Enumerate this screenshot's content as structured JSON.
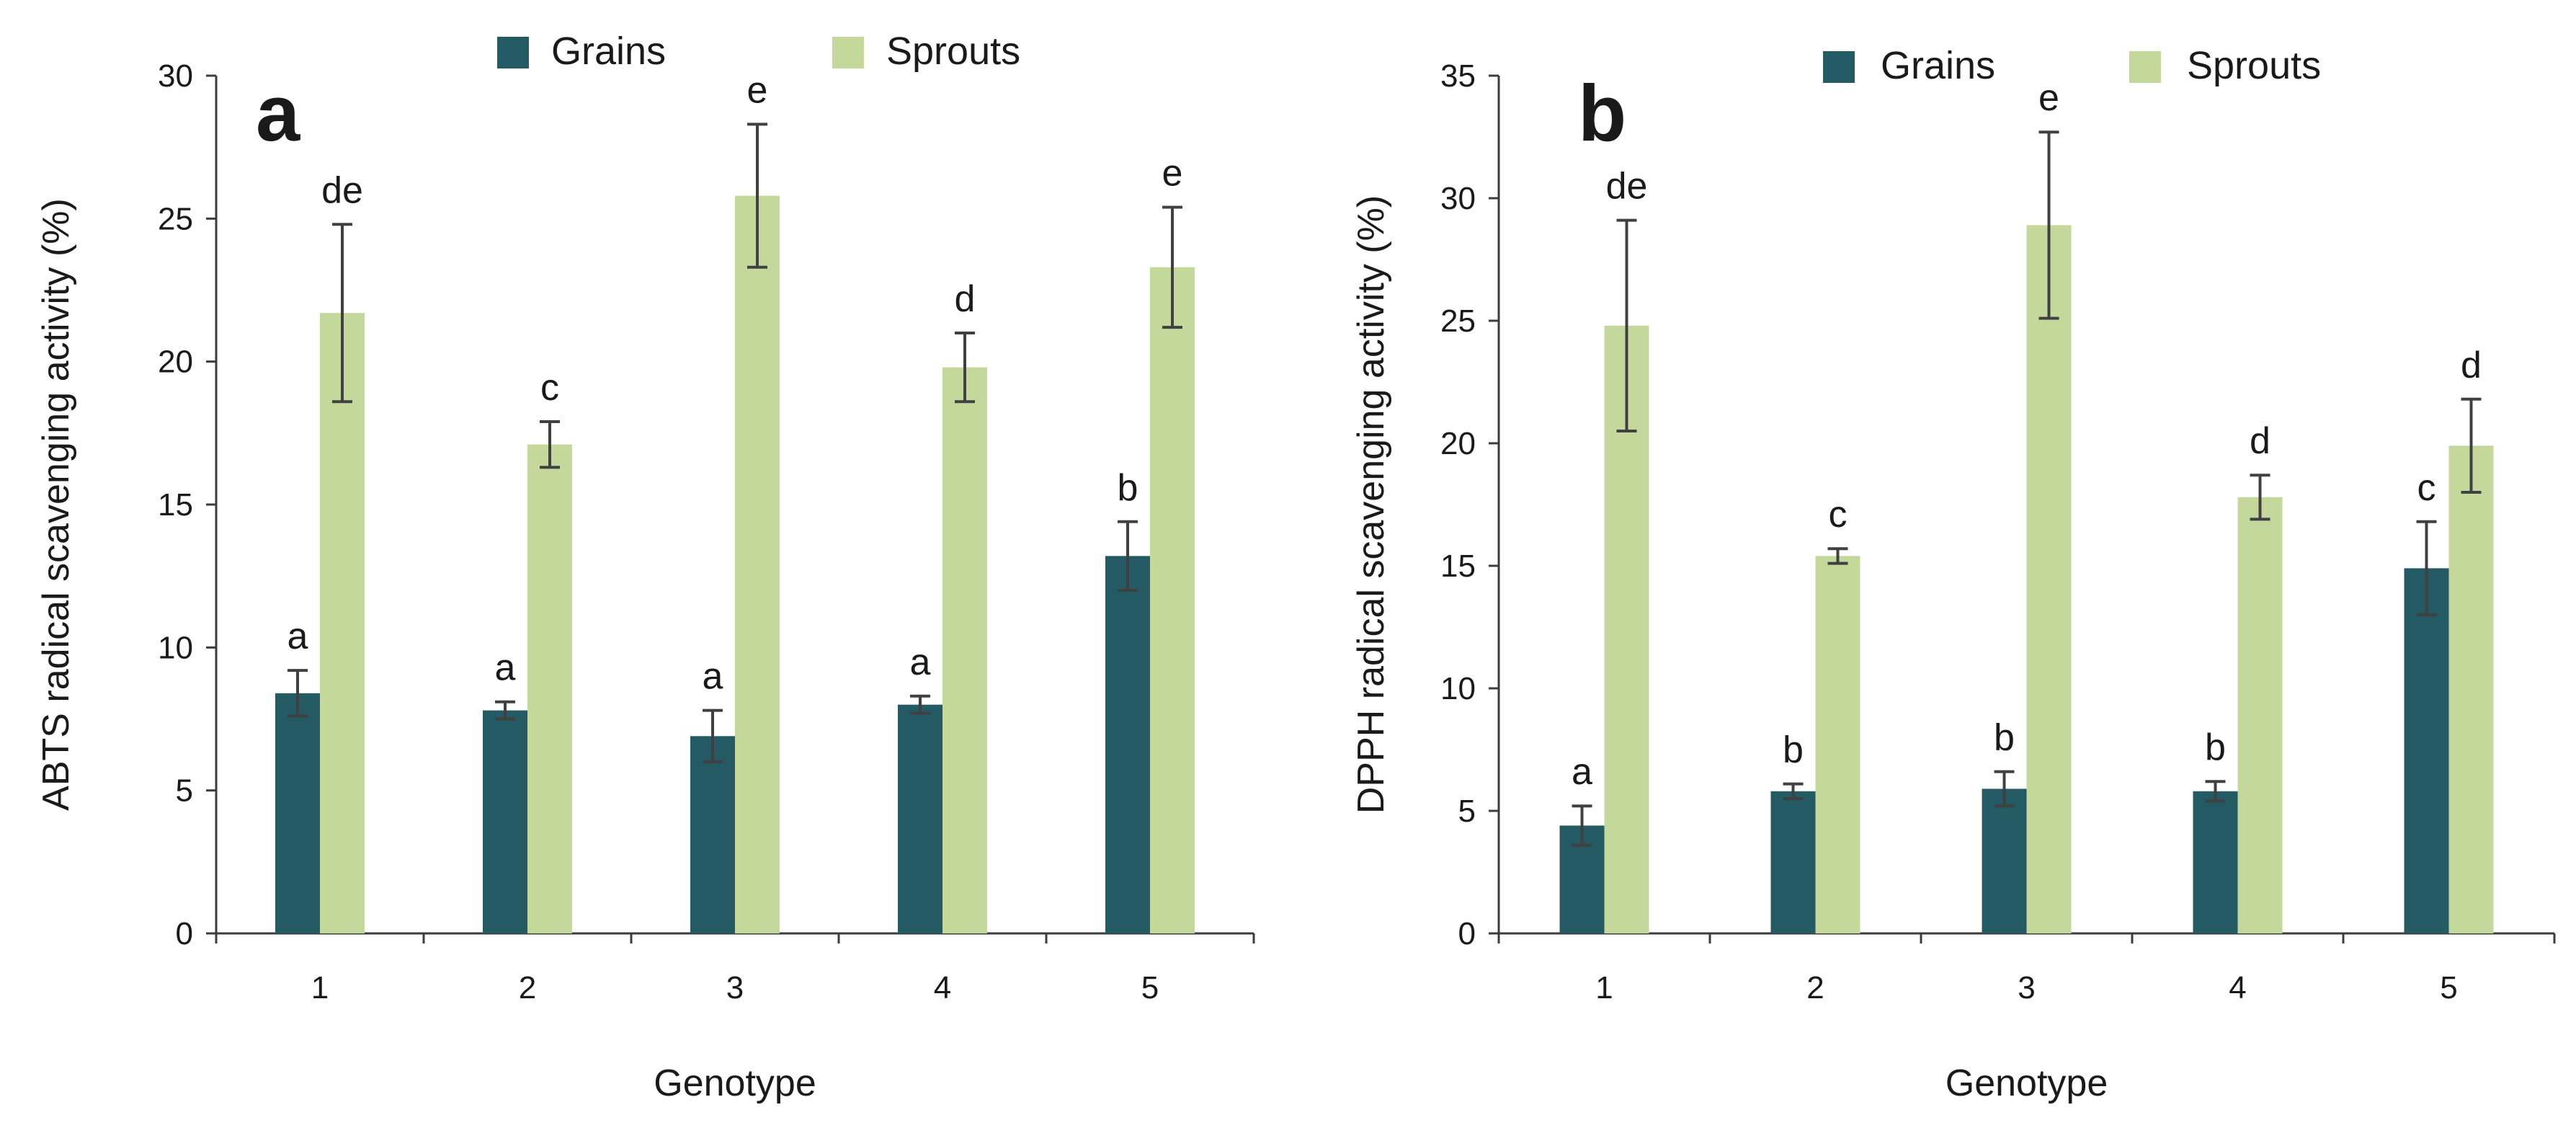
{
  "chart_data": [
    {
      "type": "bar",
      "panel": "a",
      "title": "",
      "xlabel": "Genotype",
      "ylabel": "ABTS  radical scavenging activity (%)",
      "categories": [
        "1",
        "2",
        "3",
        "4",
        "5"
      ],
      "ylim": [
        0,
        30
      ],
      "yticks": [
        "0",
        "5",
        "10",
        "15",
        "20",
        "25",
        "30"
      ],
      "legend": "top",
      "series": [
        {
          "name": "Grains",
          "color": "#245a64",
          "values": [
            8.4,
            7.8,
            6.9,
            8.0,
            13.2
          ],
          "errors": [
            0.8,
            0.3,
            0.9,
            0.3,
            1.2
          ],
          "labels": [
            "a",
            "a",
            "a",
            "a",
            "b"
          ]
        },
        {
          "name": "Sprouts",
          "color": "#c4d89b",
          "values": [
            21.7,
            17.1,
            25.8,
            19.8,
            23.3
          ],
          "errors": [
            3.1,
            0.8,
            2.5,
            1.2,
            2.1
          ],
          "labels": [
            "de",
            "c",
            "e",
            "d",
            "e"
          ]
        }
      ]
    },
    {
      "type": "bar",
      "panel": "b",
      "title": "",
      "xlabel": "Genotype",
      "ylabel": "DPPH radical scavenging activity (%)",
      "categories": [
        "1",
        "2",
        "3",
        "4",
        "5"
      ],
      "ylim": [
        0,
        35
      ],
      "yticks": [
        "0",
        "5",
        "10",
        "15",
        "20",
        "25",
        "30",
        "35"
      ],
      "legend": "top",
      "series": [
        {
          "name": "Grains",
          "color": "#245a64",
          "values": [
            4.4,
            5.8,
            5.9,
            5.8,
            14.9
          ],
          "errors": [
            0.8,
            0.3,
            0.7,
            0.4,
            1.9
          ],
          "labels": [
            "a",
            "b",
            "b",
            "b",
            "c"
          ]
        },
        {
          "name": "Sprouts",
          "color": "#c4d89b",
          "values": [
            24.8,
            15.4,
            28.9,
            17.8,
            19.9
          ],
          "errors": [
            4.3,
            0.3,
            3.8,
            0.9,
            1.9
          ],
          "labels": [
            "de",
            "c",
            "e",
            "d",
            "d"
          ]
        }
      ]
    }
  ],
  "colors": {
    "axis": "#3c3c3c",
    "error_bar": "#404040",
    "text": "#1a1a1a"
  }
}
